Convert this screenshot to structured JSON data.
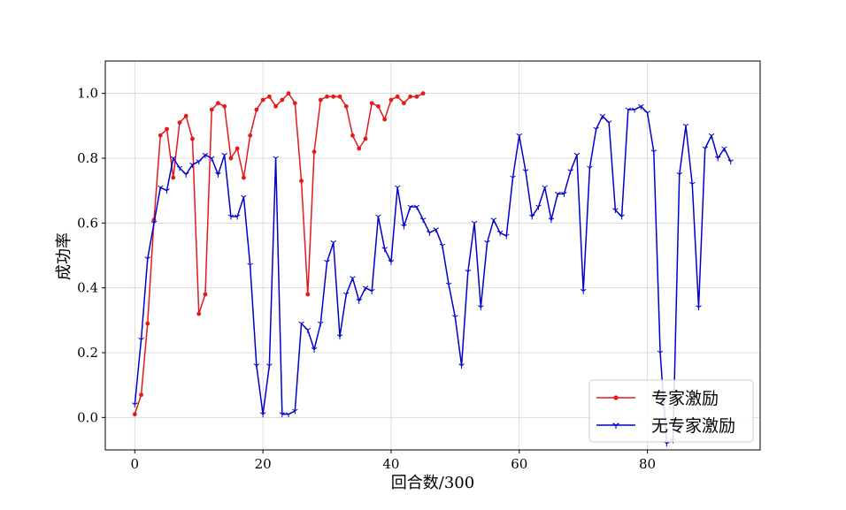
{
  "chart_data": {
    "type": "line",
    "xlabel": "回合数/300",
    "ylabel": "成功率",
    "xlim": [
      -4.6,
      97.6
    ],
    "ylim": [
      -0.1,
      1.1
    ],
    "x_ticks": [
      0,
      20,
      40,
      60,
      80
    ],
    "x_tick_labels": [
      "0",
      "20",
      "40",
      "60",
      "80"
    ],
    "y_ticks": [
      0.0,
      0.2,
      0.4,
      0.6,
      0.8,
      1.0
    ],
    "y_tick_labels": [
      "0.0",
      "0.2",
      "0.4",
      "0.6",
      "0.8",
      "1.0"
    ],
    "grid": true,
    "legend_position": "lower-right",
    "series": [
      {
        "name": "专家激励",
        "color": "#e31a1c",
        "marker": "dot",
        "x": [
          0,
          1,
          2,
          3,
          4,
          5,
          6,
          7,
          8,
          9,
          10,
          11,
          12,
          13,
          14,
          15,
          16,
          17,
          18,
          19,
          20,
          21,
          22,
          23,
          24,
          25,
          26,
          27,
          28,
          29,
          30,
          31,
          32,
          33,
          34,
          35,
          36,
          37,
          38,
          39,
          40,
          41,
          42,
          43,
          44,
          45
        ],
        "values": [
          0.01,
          0.07,
          0.29,
          0.61,
          0.87,
          0.89,
          0.74,
          0.91,
          0.93,
          0.86,
          0.32,
          0.38,
          0.95,
          0.97,
          0.96,
          0.8,
          0.83,
          0.74,
          0.87,
          0.95,
          0.98,
          0.99,
          0.96,
          0.98,
          1.0,
          0.97,
          0.73,
          0.38,
          0.82,
          0.98,
          0.99,
          0.99,
          0.99,
          0.96,
          0.87,
          0.83,
          0.86,
          0.97,
          0.96,
          0.92,
          0.98,
          0.99,
          0.97,
          0.99,
          0.99,
          1.0
        ]
      },
      {
        "name": "无专家激励",
        "color": "#0000cc",
        "marker": "tri",
        "x": [
          0,
          1,
          2,
          3,
          4,
          5,
          6,
          7,
          8,
          9,
          10,
          11,
          12,
          13,
          14,
          15,
          16,
          17,
          18,
          19,
          20,
          21,
          22,
          23,
          24,
          25,
          26,
          27,
          28,
          29,
          30,
          31,
          32,
          33,
          34,
          35,
          36,
          37,
          38,
          39,
          40,
          41,
          42,
          43,
          44,
          45,
          46,
          47,
          48,
          49,
          50,
          51,
          52,
          53,
          54,
          55,
          56,
          57,
          58,
          59,
          60,
          61,
          62,
          63,
          64,
          65,
          66,
          67,
          68,
          69,
          70,
          71,
          72,
          73,
          74,
          75,
          76,
          77,
          78,
          79,
          80,
          81,
          82,
          83,
          84,
          85,
          86,
          87,
          88,
          89,
          90,
          91,
          92,
          93
        ],
        "values": [
          0.04,
          0.24,
          0.49,
          0.6,
          0.71,
          0.7,
          0.8,
          0.77,
          0.75,
          0.78,
          0.79,
          0.81,
          0.8,
          0.75,
          0.81,
          0.62,
          0.62,
          0.68,
          0.47,
          0.16,
          0.01,
          0.16,
          0.8,
          0.01,
          0.01,
          0.02,
          0.29,
          0.27,
          0.21,
          0.29,
          0.48,
          0.54,
          0.25,
          0.38,
          0.43,
          0.36,
          0.4,
          0.39,
          0.62,
          0.52,
          0.48,
          0.71,
          0.59,
          0.65,
          0.65,
          0.61,
          0.57,
          0.58,
          0.53,
          0.41,
          0.31,
          0.16,
          0.45,
          0.6,
          0.34,
          0.54,
          0.61,
          0.57,
          0.56,
          0.74,
          0.87,
          0.76,
          0.62,
          0.65,
          0.71,
          0.61,
          0.69,
          0.69,
          0.76,
          0.81,
          0.39,
          0.77,
          0.89,
          0.93,
          0.91,
          0.64,
          0.62,
          0.95,
          0.95,
          0.96,
          0.94,
          0.82,
          0.2,
          -0.08,
          -0.07,
          0.75,
          0.9,
          0.72,
          0.34,
          0.83,
          0.87,
          0.8,
          0.83,
          0.79
        ]
      }
    ]
  }
}
